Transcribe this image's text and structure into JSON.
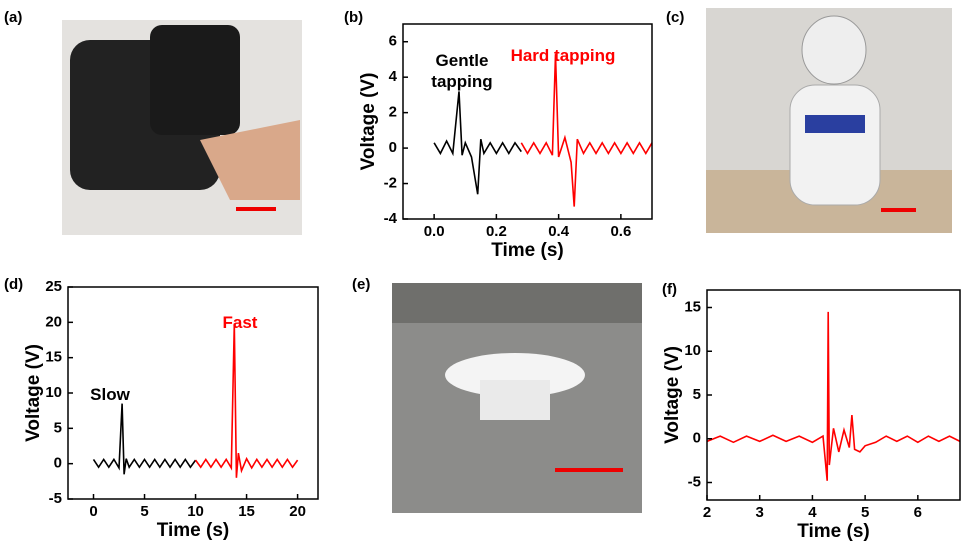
{
  "panel_labels": [
    "(a)",
    "(b)",
    "(c)",
    "(d)",
    "(e)",
    "(f)"
  ],
  "chart_data": [
    {
      "type": "line",
      "xlabel": "Time (s)",
      "ylabel": "Voltage (V)",
      "xlim": [
        -0.1,
        0.7
      ],
      "xticks": [
        {
          "value": 0,
          "label": "0.0"
        },
        0.2,
        0.4,
        0.6
      ],
      "ylim": [
        -4,
        7
      ],
      "yticks": [
        -4,
        -2,
        0,
        2,
        4,
        6
      ],
      "annotations": [
        {
          "text": "Gentle tapping",
          "color": "#000000"
        },
        {
          "text": "Hard tapping",
          "color": "#ff0000"
        }
      ],
      "series": [
        {
          "color": "#000000",
          "x": [
            0,
            0.02,
            0.04,
            0.06,
            0.08,
            0.09,
            0.1,
            0.12,
            0.14,
            0.15,
            0.16,
            0.18,
            0.2,
            0.22,
            0.24,
            0.26,
            0.28
          ],
          "values": [
            0.3,
            -0.3,
            0.4,
            -0.3,
            3.2,
            -0.4,
            0.3,
            -0.5,
            -2.6,
            0.5,
            -0.3,
            0.3,
            -0.3,
            0.3,
            -0.3,
            0.3,
            -0.2
          ]
        },
        {
          "color": "#ff0000",
          "x": [
            0.28,
            0.3,
            0.32,
            0.34,
            0.36,
            0.38,
            0.39,
            0.4,
            0.42,
            0.44,
            0.45,
            0.46,
            0.48,
            0.5,
            0.52,
            0.54,
            0.56,
            0.58,
            0.6,
            0.62,
            0.64,
            0.66,
            0.68,
            0.7
          ],
          "values": [
            0.3,
            -0.3,
            0.3,
            -0.3,
            0.3,
            -0.4,
            5.3,
            -0.5,
            0.6,
            -0.8,
            -3.3,
            0.5,
            -0.3,
            0.3,
            -0.3,
            0.3,
            -0.3,
            0.3,
            -0.3,
            0.3,
            -0.3,
            0.3,
            -0.3,
            0.3
          ]
        }
      ]
    },
    {
      "type": "line",
      "xlabel": "Time (s)",
      "ylabel": "Voltage (V)",
      "xlim": [
        -2.5,
        22
      ],
      "xticks": [
        0,
        5,
        10,
        15,
        20
      ],
      "ylim": [
        -5,
        25
      ],
      "yticks": [
        -5,
        0,
        5,
        10,
        15,
        20,
        25
      ],
      "annotations": [
        {
          "text": "Slow",
          "color": "#000000"
        },
        {
          "text": "Fast",
          "color": "#ff0000"
        }
      ],
      "series": [
        {
          "color": "#000000",
          "x": [
            0,
            0.5,
            1,
            1.5,
            2,
            2.5,
            2.8,
            3,
            3.2,
            3.5,
            4,
            4.5,
            5,
            5.5,
            6,
            6.5,
            7,
            7.5,
            8,
            8.5,
            9,
            9.5,
            10
          ],
          "values": [
            0.6,
            -0.5,
            0.6,
            -0.5,
            0.6,
            -0.6,
            8.5,
            -1.5,
            0.7,
            -0.5,
            0.6,
            -0.5,
            0.6,
            -0.5,
            0.6,
            -0.5,
            0.6,
            -0.5,
            0.6,
            -0.5,
            0.6,
            -0.5,
            0.5
          ]
        },
        {
          "color": "#ff0000",
          "x": [
            10,
            10.5,
            11,
            11.5,
            12,
            12.5,
            13,
            13.5,
            13.8,
            14,
            14.2,
            14.5,
            15,
            15.5,
            16,
            16.5,
            17,
            17.5,
            18,
            18.5,
            19,
            19.5,
            20
          ],
          "values": [
            0.5,
            -0.5,
            0.6,
            -0.5,
            0.6,
            -0.5,
            0.6,
            -0.6,
            19.8,
            -2,
            1.5,
            -1,
            0.7,
            -0.6,
            0.6,
            -0.5,
            0.6,
            -0.5,
            0.6,
            -0.5,
            0.6,
            -0.5,
            0.5
          ]
        }
      ]
    },
    {
      "type": "line",
      "xlabel": "Time (s)",
      "ylabel": "Voltage (V)",
      "xlim": [
        2,
        6.8
      ],
      "xticks": [
        2,
        3,
        4,
        5,
        6
      ],
      "ylim": [
        -7,
        17
      ],
      "yticks": [
        -5,
        0,
        5,
        10,
        15
      ],
      "series": [
        {
          "color": "#ff0000",
          "x": [
            2,
            2.25,
            2.5,
            2.75,
            3,
            3.25,
            3.5,
            3.75,
            4,
            4.2,
            4.28,
            4.3,
            4.32,
            4.4,
            4.5,
            4.6,
            4.7,
            4.75,
            4.8,
            4.9,
            5,
            5.2,
            5.4,
            5.6,
            5.8,
            6,
            6.2,
            6.4,
            6.6,
            6.8
          ],
          "values": [
            -0.3,
            0.3,
            -0.4,
            0.3,
            -0.3,
            0.4,
            -0.3,
            0.3,
            -0.4,
            0.3,
            -4.8,
            14.5,
            -3,
            1.2,
            -1.5,
            1,
            -1,
            2.7,
            -1.2,
            -1.5,
            -0.8,
            -0.4,
            0.3,
            -0.3,
            0.3,
            -0.4,
            0.3,
            -0.3,
            0.3,
            -0.3
          ]
        }
      ]
    }
  ]
}
